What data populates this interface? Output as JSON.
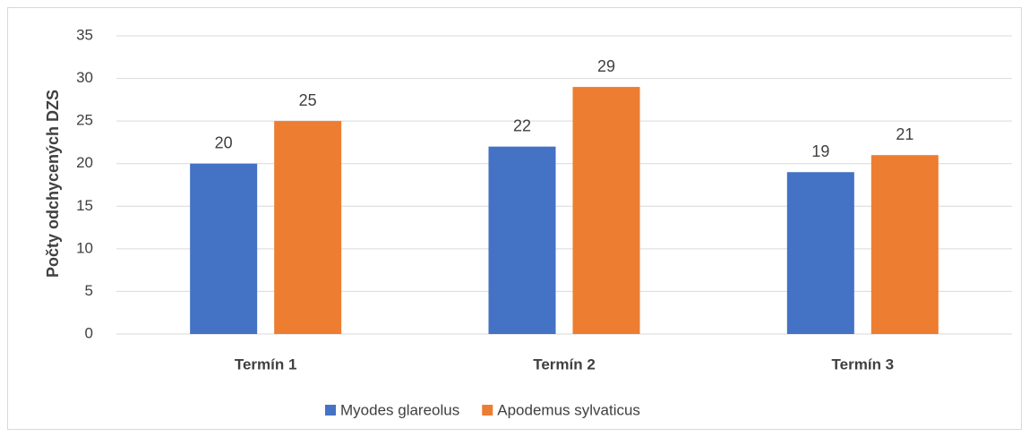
{
  "chart_data": {
    "type": "bar",
    "y_label": "Počty odchycených DZS",
    "categories": [
      "Termín 1",
      "Termín 2",
      "Termín 3"
    ],
    "series": [
      {
        "name": "Myodes glareolus",
        "color": "#4472c4",
        "values": [
          20,
          22,
          19
        ]
      },
      {
        "name": "Apodemus sylvaticus",
        "color": "#ed7d31",
        "values": [
          25,
          29,
          21
        ]
      }
    ],
    "ylim": [
      0,
      35
    ],
    "yticks": [
      0,
      5,
      10,
      15,
      20,
      25,
      30,
      35
    ],
    "grid": true,
    "legend": "bottom"
  }
}
